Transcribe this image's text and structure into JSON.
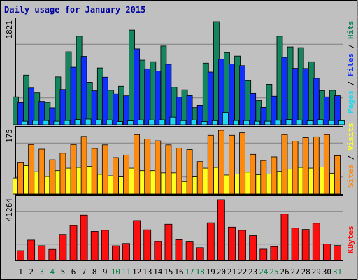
{
  "chart_data": {
    "type": "bar",
    "title": "Daily usage for January 2015",
    "categories": [
      "1",
      "2",
      "3",
      "4",
      "5",
      "6",
      "7",
      "8",
      "9",
      "10",
      "11",
      "12",
      "13",
      "14",
      "15",
      "16",
      "17",
      "18",
      "19",
      "20",
      "21",
      "22",
      "23",
      "24",
      "25",
      "26",
      "27",
      "28",
      "29",
      "30",
      "31"
    ],
    "weekend_days": [
      "3",
      "4",
      "10",
      "11",
      "17",
      "18",
      "24",
      "25",
      "31"
    ],
    "panels": [
      {
        "max_label": "1821",
        "ylim": [
          0,
          1821
        ],
        "series": [
          {
            "name": "Hits",
            "color": "#138660",
            "values": [
              493,
              876,
              561,
              396,
              844,
              1288,
              1563,
              750,
              1002,
              609,
              678,
              1671,
              1139,
              1112,
              1389,
              660,
              617,
              301,
              1087,
              1821,
              1273,
              1212,
              778,
              426,
              713,
              1563,
              1374,
              1361,
              1111,
              603,
              608
            ]
          },
          {
            "name": "Files",
            "color": "#1030ff",
            "values": [
              391,
              647,
              413,
              298,
              622,
              1015,
              1207,
              599,
              839,
              542,
              512,
              1339,
              987,
              946,
              1066,
              489,
              515,
              342,
              929,
              1156,
              1070,
              1043,
              553,
              304,
              505,
              1189,
              996,
              993,
              819,
              492,
              513
            ]
          },
          {
            "name": "Pages",
            "color": "#20d8f0",
            "values": [
              60,
              74,
              73,
              60,
              73,
              91,
              99,
              85,
              84,
              55,
              67,
              84,
              83,
              85,
              134,
              71,
              83,
              55,
              70,
              214,
              73,
              72,
              60,
              60,
              77,
              92,
              83,
              68,
              88,
              73,
              69
            ]
          }
        ]
      },
      {
        "max_label": "175",
        "ylim": [
          0,
          175
        ],
        "series": [
          {
            "name": "Visits",
            "color": "#ffff20",
            "values": [
              44,
              78,
              61,
              48,
              64,
              71,
              73,
              76,
              54,
              50,
              47,
              71,
              64,
              64,
              58,
              58,
              34,
              47,
              71,
              73,
              52,
              55,
              60,
              53,
              55,
              62,
              68,
              73,
              71,
              74,
              57
            ]
          },
          {
            "name": "Sites",
            "color": "#ff8a10",
            "values": [
              86,
              136,
              123,
              94,
              112,
              136,
              158,
              125,
              135,
              100,
              107,
              163,
              151,
              146,
              135,
              126,
              122,
              89,
              161,
              175,
              161,
              168,
              109,
              92,
              102,
              163,
              145,
              155,
              157,
              163,
              105
            ]
          }
        ]
      },
      {
        "max_label": "41264",
        "ylim": [
          0,
          41264
        ],
        "series": [
          {
            "name": "KBytes",
            "color": "#ff1010",
            "values": [
              6624,
              13792,
              10000,
              7488,
              17680,
              23680,
              30720,
              19696,
              20480,
              9936,
              11488,
              27040,
              20784,
              12784,
              24544,
              14048,
              12528,
              8624,
              25536,
              41264,
              22624,
              20448,
              16832,
              7616,
              9344,
              31472,
              21968,
              21040,
              25248,
              11072,
              10112
            ]
          }
        ]
      }
    ],
    "legend_placement": "right, rotated vertically",
    "grid": true,
    "colors": {
      "background": "#c0c0c0",
      "frame": "#000000",
      "title": "#0000a0",
      "weekend_label": "#008040",
      "weekday_label": "#000000"
    }
  }
}
